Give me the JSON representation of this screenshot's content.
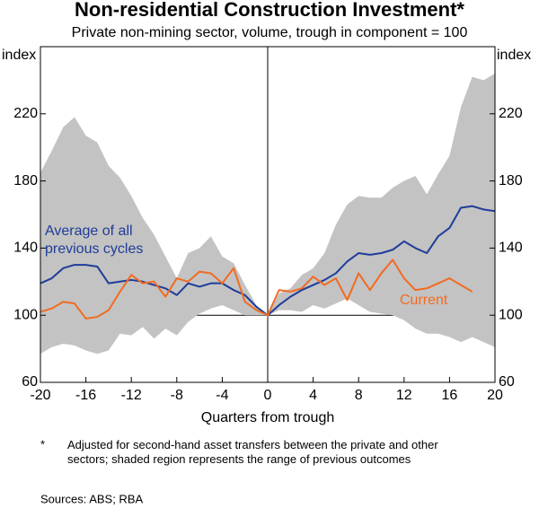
{
  "chart_data": {
    "type": "line",
    "title": "Non-residential Construction Investment*",
    "subtitle": "Private non-mining sector, volume, trough in component = 100",
    "y_label": "index",
    "y2_label": "index",
    "x_label": "Quarters from trough",
    "footnote_marker": "*",
    "footnote": "Adjusted for second-hand asset transfers between the private and other sectors; shaded region represents the range of previous outcomes",
    "sources": "Sources:  ABS; RBA",
    "x": [
      -20,
      -19,
      -18,
      -17,
      -16,
      -15,
      -14,
      -13,
      -12,
      -11,
      -10,
      -9,
      -8,
      -7,
      -6,
      -5,
      -4,
      -3,
      -2,
      -1,
      0,
      1,
      2,
      3,
      4,
      5,
      6,
      7,
      8,
      9,
      10,
      11,
      12,
      13,
      14,
      15,
      16,
      17,
      18,
      19,
      20
    ],
    "xlim": [
      -20,
      20
    ],
    "xticks": [
      -20,
      -16,
      -12,
      -8,
      -4,
      0,
      4,
      8,
      12,
      16,
      20
    ],
    "ylim": [
      60,
      260
    ],
    "yticks": [
      60,
      100,
      140,
      180,
      220
    ],
    "y2lim": [
      60,
      260
    ],
    "y2ticks": [
      60,
      100,
      140,
      180,
      220
    ],
    "reference_line": 100,
    "range": {
      "color": "#c3c3c3",
      "upper": [
        185,
        198,
        212,
        218,
        207,
        203,
        189,
        182,
        171,
        158,
        148,
        135,
        122,
        137,
        140,
        147,
        135,
        131,
        118,
        106,
        100,
        113,
        116,
        124,
        128,
        137,
        154,
        166,
        171,
        170,
        170,
        176,
        180,
        183,
        172,
        184,
        195,
        224,
        242,
        240,
        244
      ],
      "lower": [
        77,
        81,
        83,
        82,
        79,
        77,
        79,
        89,
        88,
        93,
        86,
        92,
        88,
        96,
        101,
        104,
        106,
        103,
        100,
        100,
        100,
        103,
        103,
        102,
        106,
        104,
        107,
        110,
        106,
        102,
        101,
        100,
        97,
        92,
        89,
        89,
        87,
        84,
        87,
        84,
        81
      ]
    },
    "series": [
      {
        "name": "Average of all previous cycles",
        "color": "#1f3c99",
        "values": [
          119,
          122,
          128,
          130,
          130,
          129,
          119,
          120,
          121,
          120,
          118,
          116,
          112,
          119,
          117,
          119,
          119,
          115,
          112,
          105,
          100,
          106,
          111,
          115,
          118,
          121,
          125,
          132,
          137,
          136,
          137,
          139,
          144,
          140,
          137,
          147,
          152,
          164,
          165,
          163,
          162
        ]
      },
      {
        "name": "Current",
        "color": "#f26b21",
        "values": [
          102,
          104,
          108,
          107,
          98,
          99,
          103,
          114,
          124,
          119,
          120,
          111,
          122,
          120,
          126,
          125,
          119,
          128,
          108,
          103,
          100,
          115,
          114,
          116,
          123,
          118,
          122,
          109,
          125,
          115,
          125,
          133,
          122,
          115,
          116,
          119,
          122,
          118,
          114,
          null,
          null
        ]
      }
    ]
  }
}
